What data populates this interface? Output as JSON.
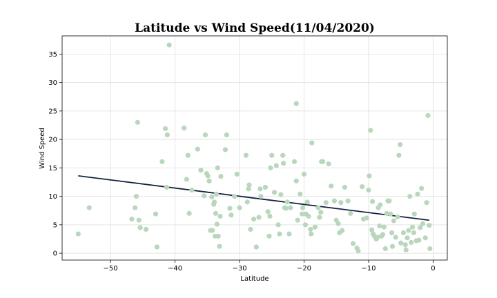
{
  "chart_data": {
    "type": "scatter",
    "title": "Latitude vs Wind Speed(11/04/2020)",
    "xlabel": "Latitude",
    "ylabel": "Wind Speed",
    "xlim": [
      -57.5,
      2.2
    ],
    "ylim": [
      -1.2,
      38.2
    ],
    "xticks": [
      -50,
      -40,
      -30,
      -20,
      -10,
      0
    ],
    "yticks": [
      0,
      5,
      10,
      15,
      20,
      25,
      30,
      35
    ],
    "grid": true,
    "colors": {
      "points": "#b9d7bd",
      "line": "#14213d"
    },
    "regression": {
      "x": [
        -55.0,
        -0.6
      ],
      "y": [
        13.6,
        5.8
      ]
    },
    "points": [
      [
        -55.0,
        3.4
      ],
      [
        -53.3,
        8.0
      ],
      [
        -46.7,
        6.0
      ],
      [
        -46.2,
        8.0
      ],
      [
        -46.0,
        10.0
      ],
      [
        -45.8,
        23.0
      ],
      [
        -45.6,
        5.8
      ],
      [
        -45.4,
        4.5
      ],
      [
        -44.5,
        4.2
      ],
      [
        -43.0,
        6.9
      ],
      [
        -42.8,
        1.1
      ],
      [
        -42.0,
        16.1
      ],
      [
        -41.5,
        21.9
      ],
      [
        -41.3,
        11.6
      ],
      [
        -41.2,
        20.8
      ],
      [
        -40.9,
        36.6
      ],
      [
        -38.6,
        22.0
      ],
      [
        -38.2,
        13.0
      ],
      [
        -38.0,
        17.2
      ],
      [
        -37.8,
        7.0
      ],
      [
        -37.4,
        11.1
      ],
      [
        -36.5,
        18.3
      ],
      [
        -36.0,
        14.6
      ],
      [
        -35.5,
        10.1
      ],
      [
        -35.3,
        20.8
      ],
      [
        -35.1,
        14.0
      ],
      [
        -34.9,
        13.6
      ],
      [
        -34.7,
        12.7
      ],
      [
        -34.5,
        4.0
      ],
      [
        -34.3,
        9.9
      ],
      [
        -34.2,
        4.0
      ],
      [
        -34.0,
        8.6
      ],
      [
        -33.9,
        9.0
      ],
      [
        -33.8,
        3.0
      ],
      [
        -33.7,
        7.0
      ],
      [
        -33.6,
        10.4
      ],
      [
        -33.4,
        15.0
      ],
      [
        -33.5,
        5.1
      ],
      [
        -33.3,
        3.0
      ],
      [
        -33.1,
        1.2
      ],
      [
        -33.0,
        6.5
      ],
      [
        -32.9,
        13.5
      ],
      [
        -32.0,
        20.8
      ],
      [
        -32.2,
        18.2
      ],
      [
        -31.5,
        7.9
      ],
      [
        -31.3,
        6.7
      ],
      [
        -30.8,
        10.0
      ],
      [
        -30.4,
        13.9
      ],
      [
        -30.0,
        8.0
      ],
      [
        -29.0,
        17.2
      ],
      [
        -28.8,
        9.0
      ],
      [
        -28.6,
        11.3
      ],
      [
        -28.5,
        12.0
      ],
      [
        -28.3,
        4.2
      ],
      [
        -27.8,
        6.0
      ],
      [
        -27.4,
        1.1
      ],
      [
        -27.0,
        6.3
      ],
      [
        -26.8,
        11.3
      ],
      [
        -26.7,
        10.0
      ],
      [
        -26.0,
        11.6
      ],
      [
        -25.6,
        7.3
      ],
      [
        -25.4,
        3.0
      ],
      [
        -25.3,
        6.5
      ],
      [
        -25.2,
        15.0
      ],
      [
        -25.0,
        17.2
      ],
      [
        -24.6,
        10.7
      ],
      [
        -24.3,
        15.4
      ],
      [
        -24.0,
        5.0
      ],
      [
        -23.8,
        3.4
      ],
      [
        -23.6,
        10.3
      ],
      [
        -23.3,
        17.2
      ],
      [
        -23.2,
        15.8
      ],
      [
        -23.0,
        8.0
      ],
      [
        -22.8,
        7.9
      ],
      [
        -22.6,
        9.0
      ],
      [
        -22.3,
        3.4
      ],
      [
        -22.1,
        8.0
      ],
      [
        -21.5,
        16.1
      ],
      [
        -21.2,
        26.3
      ],
      [
        -21.2,
        12.7
      ],
      [
        -21.0,
        5.8
      ],
      [
        -20.6,
        10.4
      ],
      [
        -20.3,
        6.9
      ],
      [
        -20.2,
        8.0
      ],
      [
        -20.0,
        13.9
      ],
      [
        -19.8,
        5.0
      ],
      [
        -19.7,
        6.9
      ],
      [
        -19.5,
        9.0
      ],
      [
        -19.3,
        6.5
      ],
      [
        -19.0,
        4.2
      ],
      [
        -18.9,
        3.4
      ],
      [
        -18.8,
        19.4
      ],
      [
        -18.3,
        4.6
      ],
      [
        -17.8,
        8.0
      ],
      [
        -17.6,
        6.3
      ],
      [
        -17.4,
        7.2
      ],
      [
        -17.3,
        16.1
      ],
      [
        -17.1,
        16.1
      ],
      [
        -16.6,
        8.9
      ],
      [
        -16.2,
        15.7
      ],
      [
        -15.8,
        11.8
      ],
      [
        -15.3,
        9.2
      ],
      [
        -15.0,
        5.8
      ],
      [
        -14.7,
        5.2
      ],
      [
        -14.5,
        3.6
      ],
      [
        -14.3,
        8.9
      ],
      [
        -14.1,
        4.0
      ],
      [
        -13.7,
        11.6
      ],
      [
        -13.2,
        9.2
      ],
      [
        -12.8,
        7.0
      ],
      [
        -12.4,
        1.7
      ],
      [
        -11.8,
        0.9
      ],
      [
        -11.6,
        0.4
      ],
      [
        -11.0,
        11.7
      ],
      [
        -10.8,
        6.0
      ],
      [
        -10.3,
        6.2
      ],
      [
        -10.0,
        11.1
      ],
      [
        -9.9,
        13.6
      ],
      [
        -9.7,
        21.6
      ],
      [
        -9.5,
        4.1
      ],
      [
        -9.4,
        9.1
      ],
      [
        -9.3,
        3.4
      ],
      [
        -9.1,
        3.0
      ],
      [
        -8.8,
        2.5
      ],
      [
        -8.6,
        2.8
      ],
      [
        -8.5,
        8.0
      ],
      [
        -8.3,
        4.8
      ],
      [
        -8.2,
        8.5
      ],
      [
        -8.0,
        3.0
      ],
      [
        -7.8,
        3.3
      ],
      [
        -7.6,
        4.6
      ],
      [
        -7.4,
        0.8
      ],
      [
        -7.2,
        7.0
      ],
      [
        -7.0,
        9.2
      ],
      [
        -6.8,
        9.2
      ],
      [
        -6.6,
        6.9
      ],
      [
        -6.4,
        3.6
      ],
      [
        -6.3,
        1.2
      ],
      [
        -6.1,
        5.7
      ],
      [
        -5.8,
        2.8
      ],
      [
        -5.5,
        6.4
      ],
      [
        -5.3,
        17.2
      ],
      [
        -5.1,
        19.1
      ],
      [
        -5.0,
        1.8
      ],
      [
        -4.6,
        3.6
      ],
      [
        -4.3,
        1.5
      ],
      [
        -4.2,
        0.6
      ],
      [
        -4.0,
        2.7
      ],
      [
        -3.8,
        4.0
      ],
      [
        -3.6,
        10.0
      ],
      [
        -3.4,
        1.9
      ],
      [
        -3.2,
        4.6
      ],
      [
        -3.0,
        3.6
      ],
      [
        -2.9,
        6.9
      ],
      [
        -2.6,
        2.2
      ],
      [
        -2.4,
        10.4
      ],
      [
        -2.2,
        2.3
      ],
      [
        -2.0,
        4.5
      ],
      [
        -1.8,
        11.4
      ],
      [
        -1.6,
        5.2
      ],
      [
        -1.2,
        2.7
      ],
      [
        -1.0,
        8.9
      ],
      [
        -0.8,
        24.2
      ],
      [
        -0.6,
        4.9
      ],
      [
        -0.5,
        0.8
      ]
    ]
  }
}
